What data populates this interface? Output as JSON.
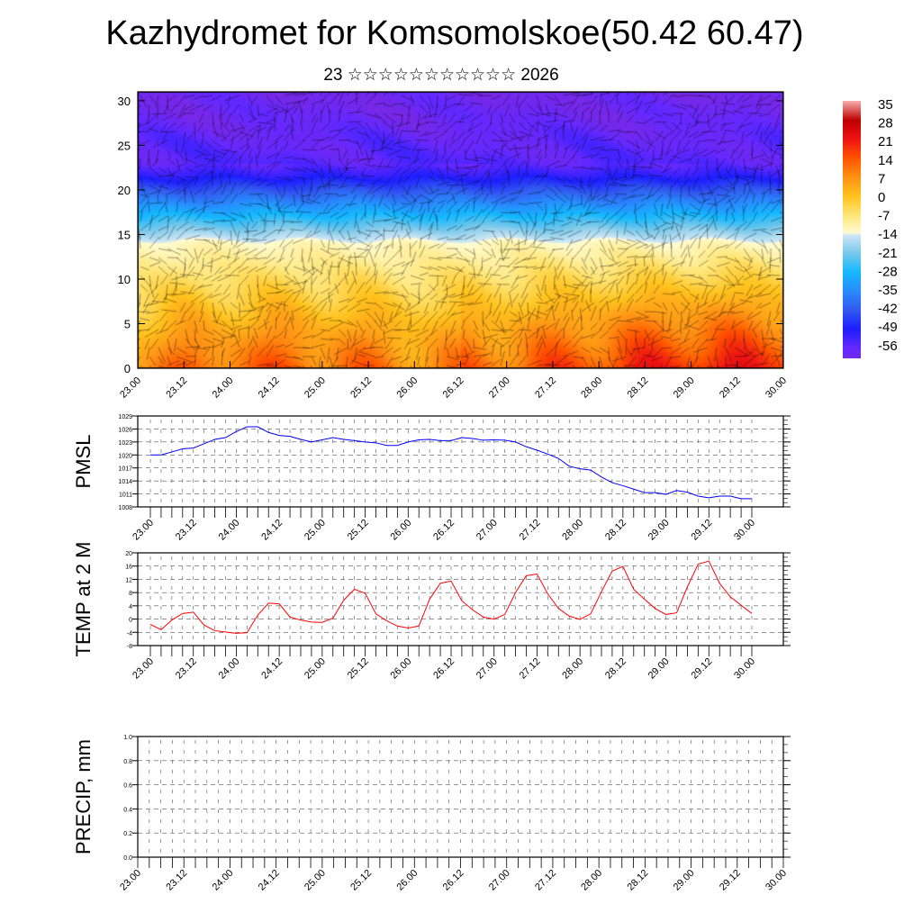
{
  "title": "Kazhydromet for Komsomolskoe(50.42 60.47)",
  "subtitle": "23 ☆☆☆☆☆☆☆☆☆☆☆ 2026",
  "chart_data": [
    {
      "type": "heatmap",
      "name": "cross-section",
      "xlabel": "",
      "ylabel": "",
      "x_ticks": [
        "23.00",
        "23.12",
        "24.00",
        "24.12",
        "25.00",
        "25.12",
        "26.00",
        "26.12",
        "27.00",
        "27.12",
        "28.00",
        "28.12",
        "29.00",
        "29.12",
        "30.00"
      ],
      "y_ticks": [
        0,
        5,
        10,
        15,
        20,
        25,
        30
      ],
      "ylim": [
        0,
        31
      ],
      "colorbar_levels": [
        35,
        28,
        21,
        14,
        7,
        0,
        -7,
        -14,
        -21,
        -28,
        -35,
        -42,
        -49,
        -56
      ],
      "overlay": "wind vectors"
    },
    {
      "type": "line",
      "name": "pmsl",
      "ylabel": "PMSL",
      "color": "#0000ff",
      "ylim": [
        1008,
        1029
      ],
      "y_ticks": [
        1029,
        1026,
        1023,
        1020,
        1017,
        1014,
        1011,
        1008
      ],
      "x_ticks": [
        "23.00",
        "23.12",
        "24.00",
        "24.12",
        "25.00",
        "25.12",
        "26.00",
        "26.12",
        "27.00",
        "27.12",
        "28.00",
        "28.12",
        "29.00",
        "29.12",
        "30.00"
      ],
      "step_hours": 3,
      "values": [
        1020.0,
        1020.0,
        1020.7,
        1021.4,
        1021.6,
        1022.6,
        1023.6,
        1024.0,
        1025.4,
        1026.5,
        1026.5,
        1025.2,
        1024.5,
        1024.3,
        1023.6,
        1023.0,
        1023.5,
        1024.0,
        1023.6,
        1023.3,
        1023.0,
        1022.8,
        1022.2,
        1022.2,
        1023.0,
        1023.5,
        1023.6,
        1023.3,
        1023.3,
        1024.0,
        1023.8,
        1023.4,
        1023.5,
        1023.4,
        1023.0,
        1021.9,
        1021.1,
        1020.2,
        1019.2,
        1017.4,
        1016.8,
        1016.5,
        1014.9,
        1013.6,
        1012.9,
        1012.1,
        1011.3,
        1011.3,
        1010.9,
        1011.8,
        1011.4,
        1010.5,
        1010.1,
        1010.5,
        1010.5,
        1009.9,
        1009.9
      ]
    },
    {
      "type": "line",
      "name": "temp",
      "ylabel": "TEMP at 2 M",
      "color": "#ff0000",
      "ylim": [
        -8,
        20
      ],
      "y_ticks": [
        20,
        16,
        12,
        8,
        4,
        0,
        -4,
        -8
      ],
      "x_ticks": [
        "23.00",
        "23.12",
        "24.00",
        "24.12",
        "25.00",
        "25.12",
        "26.00",
        "26.12",
        "27.00",
        "27.12",
        "28.00",
        "28.12",
        "29.00",
        "29.12",
        "30.00"
      ],
      "step_hours": 3,
      "values": [
        -1.6,
        -3.2,
        -0.3,
        1.7,
        2.1,
        -1.8,
        -3.5,
        -3.9,
        -4.3,
        -4.1,
        1.2,
        4.8,
        4.6,
        0.6,
        -0.3,
        -0.9,
        -1.0,
        0.3,
        5.7,
        9.0,
        7.8,
        1.6,
        -0.5,
        -2.1,
        -2.7,
        -2.1,
        6.0,
        10.8,
        11.5,
        5.5,
        2.8,
        0.6,
        0.0,
        1.4,
        8.0,
        13.1,
        13.6,
        7.6,
        3.2,
        0.9,
        -0.1,
        1.6,
        8.3,
        14.5,
        15.9,
        9.0,
        6.0,
        3.2,
        1.4,
        1.9,
        9.7,
        16.6,
        17.5,
        10.8,
        6.7,
        4.2,
        1.7
      ]
    },
    {
      "type": "bar",
      "name": "precip",
      "ylabel": "PRECIP, mm",
      "ylim": [
        0,
        1
      ],
      "y_ticks": [
        "1.0",
        "0.8",
        "0.6",
        "0.4",
        "0.2",
        "0.0"
      ],
      "x_ticks": [
        "23.00",
        "23.12",
        "24.00",
        "24.12",
        "25.00",
        "25.12",
        "26.00",
        "26.12",
        "27.00",
        "27.12",
        "28.00",
        "28.12",
        "29.00",
        "29.12",
        "30.00"
      ],
      "values": []
    }
  ]
}
